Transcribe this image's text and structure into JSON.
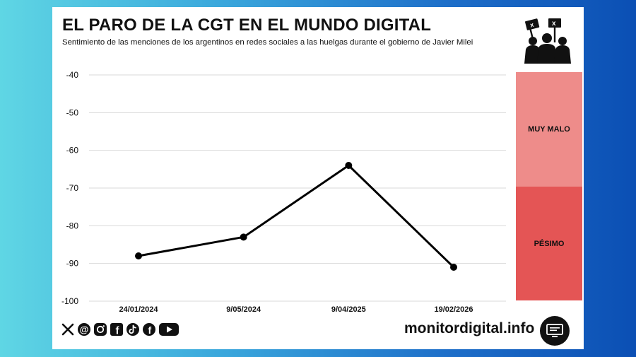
{
  "header": {
    "title": "EL PARO DE LA CGT EN EL MUNDO DIGITAL",
    "subtitle": "Sentimiento de las menciones de los argentinos en redes sociales a las huelgas durante el gobierno de Javier Milei"
  },
  "chart_data": {
    "type": "line",
    "title": "EL PARO DE LA CGT EN EL MUNDO DIGITAL",
    "subtitle": "Sentimiento de las menciones de los argentinos en redes sociales a las huelgas durante el gobierno de Javier Milei",
    "categories": [
      "24/01/2024",
      "9/05/2024",
      "9/04/2025",
      "19/02/2026"
    ],
    "series": [
      {
        "name": "Sentimiento",
        "values": [
          -88,
          -83,
          -64,
          -91
        ]
      }
    ],
    "ylim": [
      -100,
      -40
    ],
    "yticks": [
      -40,
      -50,
      -60,
      -70,
      -80,
      -90,
      -100
    ],
    "grid": true,
    "xlabel": "",
    "ylabel": "",
    "bands": [
      {
        "label": "MUY MALO",
        "from": -70,
        "to": -40,
        "color": "#ee8c8a"
      },
      {
        "label": "PÉSIMO",
        "from": -100,
        "to": -70,
        "color": "#e45555"
      }
    ],
    "line_color": "#000000"
  },
  "footer": {
    "website": "monitordigital.info",
    "social_icons": [
      "x-icon",
      "threads-icon",
      "instagram-icon",
      "facebook-icon",
      "tiktok-icon",
      "facebook-icon",
      "youtube-icon"
    ]
  }
}
